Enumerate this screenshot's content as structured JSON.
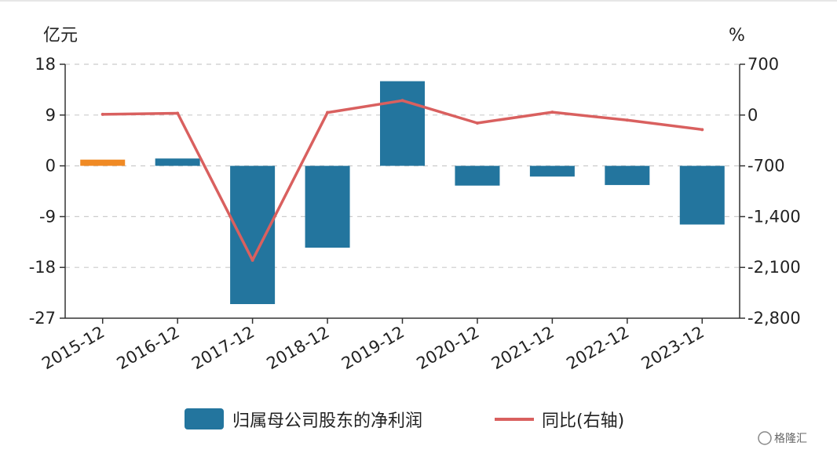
{
  "chart_data": {
    "type": "bar",
    "categories": [
      "2015-12",
      "2016-12",
      "2017-12",
      "2018-12",
      "2019-12",
      "2020-12",
      "2021-12",
      "2022-12",
      "2023-12"
    ],
    "series": [
      {
        "name": "归属母公司股东的净利润",
        "kind": "bar",
        "axis": "left",
        "color": "#23759e",
        "values": [
          1.1,
          1.3,
          -24.5,
          -14.5,
          15.0,
          -3.5,
          -1.9,
          -3.4,
          -10.4
        ]
      },
      {
        "name": "同比(右轴)",
        "kind": "line",
        "axis": "right",
        "color": "#d9605f",
        "values": [
          10,
          25,
          -2000,
          35,
          200,
          -110,
          40,
          -70,
          -200
        ]
      }
    ],
    "highlight": {
      "index": 0,
      "color": "#f08a24"
    },
    "left_axis": {
      "unit": "亿元",
      "ylim": [
        -27,
        18
      ],
      "ticks": [
        "18",
        "9",
        "0",
        "-9",
        "-18",
        "-27"
      ],
      "tick_values": [
        18,
        9,
        0,
        -9,
        -18,
        -27
      ]
    },
    "right_axis": {
      "unit": "%",
      "ylim": [
        -2800,
        700
      ],
      "ticks": [
        "700",
        "0",
        "-700",
        "-1,400",
        "-2,100",
        "-2,800"
      ],
      "tick_values": [
        700,
        0,
        -700,
        -1400,
        -2100,
        -2800
      ]
    },
    "grid": true,
    "legend_position": "bottom"
  },
  "watermark": {
    "text": "格隆汇",
    "icon": "g-logo-icon"
  }
}
